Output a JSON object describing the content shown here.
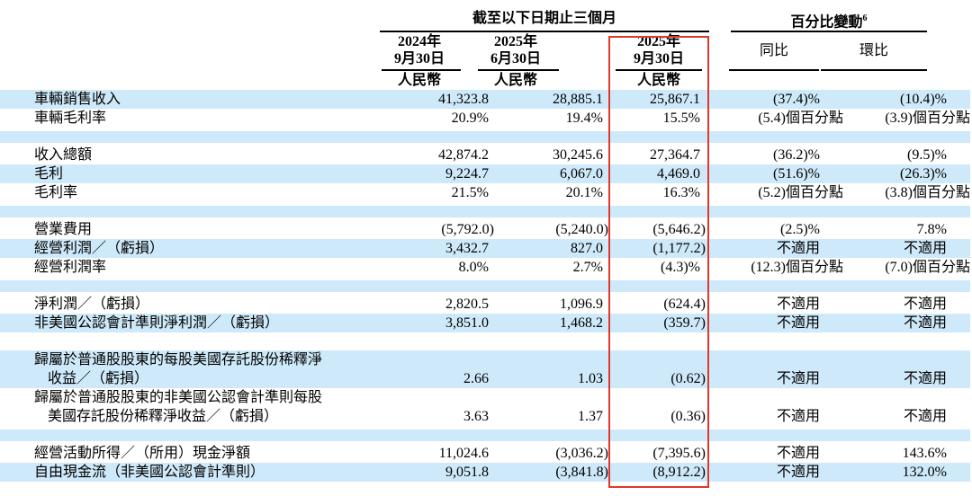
{
  "colors": {
    "stripe_blue": "#cee9f9",
    "highlight_red": "#e0382c",
    "text": "#000000",
    "rule": "#000000"
  },
  "header": {
    "period_group_label": "截至以下日期止三個月",
    "change_group_label": "百分比變動",
    "change_group_footnote": "6",
    "date_columns": [
      {
        "year_line": "2024年",
        "day_line": "9月30日",
        "currency": "人民幣"
      },
      {
        "year_line": "2025年",
        "day_line": "6月30日",
        "currency": "人民幣"
      },
      {
        "year_line": "2025年",
        "day_line": "9月30日",
        "currency": "人民幣"
      }
    ],
    "change_columns": [
      {
        "label": "同比"
      },
      {
        "label": "環比"
      }
    ],
    "highlighted_column": "2025年9月30日"
  },
  "rows": [
    {
      "label": "車輛銷售收入",
      "bg": "blue",
      "c1": "41,323.8",
      "c2": "28,885.1",
      "c3": "25,867.1",
      "yoy": "(37.4)%",
      "qoq": "(10.4)%"
    },
    {
      "label": "車輛毛利率",
      "bg": "white",
      "c1": "20.9%",
      "c2": "19.4%",
      "c3": "15.5%",
      "yoy": "(5.4)個百分點",
      "qoq": "(3.9)個百分點"
    },
    {
      "blank": true,
      "bg": "blue"
    },
    {
      "label": "收入總額",
      "bg": "white",
      "c1": "42,874.2",
      "c2": "30,245.6",
      "c3": "27,364.7",
      "yoy": "(36.2)%",
      "qoq": "(9.5)%"
    },
    {
      "label": "毛利",
      "bg": "blue",
      "c1": "9,224.7",
      "c2": "6,067.0",
      "c3": "4,469.0",
      "yoy": "(51.6)%",
      "qoq": "(26.3)%"
    },
    {
      "label": "毛利率",
      "bg": "white",
      "c1": "21.5%",
      "c2": "20.1%",
      "c3": "16.3%",
      "yoy": "(5.2)個百分點",
      "qoq": "(3.8)個百分點"
    },
    {
      "blank": true,
      "bg": "blue"
    },
    {
      "label": "營業費用",
      "bg": "white",
      "c1": "(5,792.0)",
      "c2": "(5,240.0)",
      "c3": "(5,646.2)",
      "yoy": "(2.5)%",
      "qoq": "7.8%"
    },
    {
      "label": "經營利潤／（虧損）",
      "bg": "blue",
      "c1": "3,432.7",
      "c2": "827.0",
      "c3": "(1,177.2)",
      "yoy": "不適用",
      "qoq": "不適用"
    },
    {
      "label": "經營利潤率",
      "bg": "white",
      "c1": "8.0%",
      "c2": "2.7%",
      "c3": "(4.3)%",
      "yoy": "(12.3)個百分點",
      "qoq": "(7.0)個百分點"
    },
    {
      "blank": true,
      "bg": "blue"
    },
    {
      "label": "淨利潤／（虧損）",
      "bg": "white",
      "c1": "2,820.5",
      "c2": "1,096.9",
      "c3": "(624.4)",
      "yoy": "不適用",
      "qoq": "不適用"
    },
    {
      "label": "非美國公認會計準則淨利潤／（虧損）",
      "bg": "blue",
      "c1": "3,851.0",
      "c2": "1,468.2",
      "c3": "(359.7)",
      "yoy": "不適用",
      "qoq": "不適用"
    },
    {
      "blank": true,
      "bg": "white"
    },
    {
      "label_lines": [
        "歸屬於普通股股東的每股美國存託股份稀釋淨",
        "收益／（虧損）"
      ],
      "bg": "blue",
      "c1": "2.66",
      "c2": "1.03",
      "c3": "(0.62)",
      "yoy": "不適用",
      "qoq": "不適用"
    },
    {
      "label_lines": [
        "歸屬於普通股股東的非美國公認會計準則每股",
        "美國存託股份稀釋淨收益／（虧損）"
      ],
      "bg": "white",
      "c1": "3.63",
      "c2": "1.37",
      "c3": "(0.36)",
      "yoy": "不適用",
      "qoq": "不適用"
    },
    {
      "blank": true,
      "bg": "blue"
    },
    {
      "label": "經營活動所得／（所用）現金淨額",
      "bg": "white",
      "c1": "11,024.6",
      "c2": "(3,036.2)",
      "c3": "(7,395.6)",
      "yoy": "不適用",
      "qoq": "143.6%"
    },
    {
      "label": "自由現金流（非美國公認會計準則）",
      "bg": "blue",
      "c1": "9,051.8",
      "c2": "(3,841.8)",
      "c3": "(8,912.2)",
      "yoy": "不適用",
      "qoq": "132.0%"
    }
  ]
}
